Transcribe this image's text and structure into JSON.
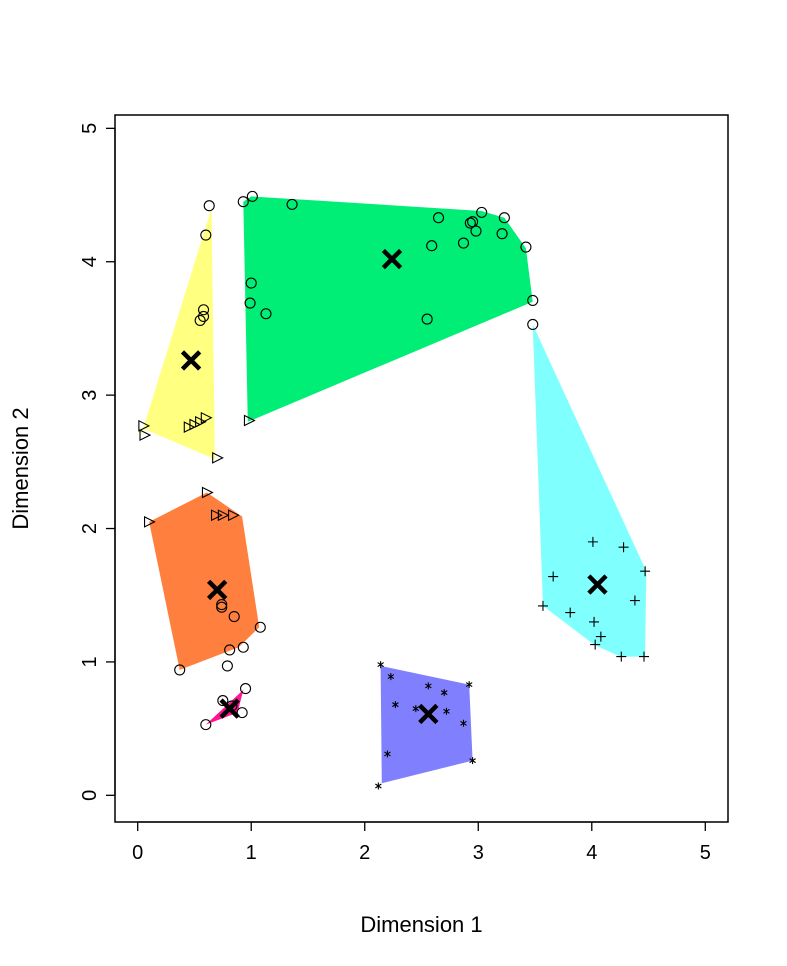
{
  "chart_data": {
    "type": "scatter",
    "xlabel": "Dimension 1",
    "ylabel": "Dimension 2",
    "xlim": [
      -0.2,
      5.2
    ],
    "ylim": [
      -0.2,
      5.1
    ],
    "x_ticks": [
      "0",
      "1",
      "2",
      "3",
      "4",
      "5"
    ],
    "y_ticks": [
      "0",
      "1",
      "2",
      "3",
      "4",
      "5"
    ],
    "grid": false,
    "legend": "none",
    "clusters": [
      {
        "color": "#ffff80",
        "hull": [
          [
            0.65,
            4.4
          ],
          [
            0.68,
            2.52
          ],
          [
            0.02,
            2.76
          ],
          [
            0.03,
            2.7
          ]
        ],
        "centroid": [
          0.47,
          3.26
        ],
        "points": [
          {
            "marker": "circle",
            "x": 0.63,
            "y": 4.42
          },
          {
            "marker": "circle",
            "x": 0.6,
            "y": 4.2
          },
          {
            "marker": "circle",
            "x": 0.58,
            "y": 3.64
          },
          {
            "marker": "circle",
            "x": 0.55,
            "y": 3.56
          },
          {
            "marker": "circle",
            "x": 0.58,
            "y": 3.59
          },
          {
            "marker": "triangle",
            "x": 0.05,
            "y": 2.77
          },
          {
            "marker": "triangle",
            "x": 0.06,
            "y": 2.7
          },
          {
            "marker": "triangle",
            "x": 0.45,
            "y": 2.76
          },
          {
            "marker": "triangle",
            "x": 0.5,
            "y": 2.78
          },
          {
            "marker": "triangle",
            "x": 0.55,
            "y": 2.8
          },
          {
            "marker": "triangle",
            "x": 0.6,
            "y": 2.83
          },
          {
            "marker": "triangle",
            "x": 0.7,
            "y": 2.53
          }
        ]
      },
      {
        "color": "#00ee76",
        "hull": [
          [
            0.93,
            4.45
          ],
          [
            1.0,
            4.49
          ],
          [
            3.03,
            4.38
          ],
          [
            3.23,
            4.33
          ],
          [
            3.42,
            4.1
          ],
          [
            3.48,
            3.7
          ],
          [
            0.97,
            2.8
          ]
        ],
        "centroid": [
          2.24,
          4.02
        ],
        "points": [
          {
            "marker": "circle",
            "x": 0.93,
            "y": 4.45
          },
          {
            "marker": "circle",
            "x": 1.01,
            "y": 4.49
          },
          {
            "marker": "circle",
            "x": 1.36,
            "y": 4.43
          },
          {
            "marker": "circle",
            "x": 2.65,
            "y": 4.33
          },
          {
            "marker": "circle",
            "x": 2.93,
            "y": 4.29
          },
          {
            "marker": "circle",
            "x": 2.95,
            "y": 4.3
          },
          {
            "marker": "circle",
            "x": 3.03,
            "y": 4.37
          },
          {
            "marker": "circle",
            "x": 3.23,
            "y": 4.33
          },
          {
            "marker": "circle",
            "x": 2.98,
            "y": 4.23
          },
          {
            "marker": "circle",
            "x": 3.21,
            "y": 4.21
          },
          {
            "marker": "circle",
            "x": 2.87,
            "y": 4.14
          },
          {
            "marker": "circle",
            "x": 2.59,
            "y": 4.12
          },
          {
            "marker": "circle",
            "x": 3.42,
            "y": 4.11
          },
          {
            "marker": "circle",
            "x": 1.0,
            "y": 3.84
          },
          {
            "marker": "circle",
            "x": 0.99,
            "y": 3.69
          },
          {
            "marker": "circle",
            "x": 1.13,
            "y": 3.61
          },
          {
            "marker": "circle",
            "x": 3.48,
            "y": 3.71
          },
          {
            "marker": "circle",
            "x": 2.55,
            "y": 3.57
          },
          {
            "marker": "triangle",
            "x": 0.98,
            "y": 2.81
          }
        ]
      },
      {
        "color": "#80ffff",
        "hull": [
          [
            3.48,
            3.53
          ],
          [
            4.48,
            1.68
          ],
          [
            4.47,
            1.04
          ],
          [
            4.25,
            1.04
          ],
          [
            4.02,
            1.13
          ],
          [
            3.57,
            1.42
          ]
        ],
        "centroid": [
          4.05,
          1.58
        ],
        "points": [
          {
            "marker": "circle",
            "x": 3.48,
            "y": 3.53
          },
          {
            "marker": "plus",
            "x": 4.01,
            "y": 1.9
          },
          {
            "marker": "plus",
            "x": 4.28,
            "y": 1.86
          },
          {
            "marker": "plus",
            "x": 3.66,
            "y": 1.64
          },
          {
            "marker": "plus",
            "x": 4.47,
            "y": 1.68
          },
          {
            "marker": "plus",
            "x": 4.38,
            "y": 1.46
          },
          {
            "marker": "plus",
            "x": 3.57,
            "y": 1.42
          },
          {
            "marker": "plus",
            "x": 3.81,
            "y": 1.37
          },
          {
            "marker": "plus",
            "x": 4.02,
            "y": 1.3
          },
          {
            "marker": "plus",
            "x": 4.08,
            "y": 1.19
          },
          {
            "marker": "plus",
            "x": 4.03,
            "y": 1.13
          },
          {
            "marker": "plus",
            "x": 4.26,
            "y": 1.04
          },
          {
            "marker": "plus",
            "x": 4.46,
            "y": 1.04
          }
        ]
      },
      {
        "color": "#ff7f3f",
        "hull": [
          [
            0.61,
            2.27
          ],
          [
            0.92,
            2.09
          ],
          [
            1.07,
            1.26
          ],
          [
            0.89,
            1.11
          ],
          [
            0.37,
            0.94
          ],
          [
            0.1,
            2.05
          ]
        ],
        "centroid": [
          0.7,
          1.54
        ],
        "points": [
          {
            "marker": "triangle",
            "x": 0.61,
            "y": 2.27
          },
          {
            "marker": "triangle",
            "x": 0.1,
            "y": 2.05
          },
          {
            "marker": "triangle",
            "x": 0.69,
            "y": 2.1
          },
          {
            "marker": "triangle",
            "x": 0.75,
            "y": 2.1
          },
          {
            "marker": "triangle",
            "x": 0.84,
            "y": 2.1
          },
          {
            "marker": "circle",
            "x": 0.74,
            "y": 1.43
          },
          {
            "marker": "circle",
            "x": 0.74,
            "y": 1.41
          },
          {
            "marker": "circle",
            "x": 0.85,
            "y": 1.34
          },
          {
            "marker": "circle",
            "x": 1.08,
            "y": 1.26
          },
          {
            "marker": "circle",
            "x": 0.93,
            "y": 1.11
          },
          {
            "marker": "circle",
            "x": 0.81,
            "y": 1.09
          },
          {
            "marker": "circle",
            "x": 0.79,
            "y": 0.97
          },
          {
            "marker": "circle",
            "x": 0.37,
            "y": 0.94
          }
        ]
      },
      {
        "color": "#ff1493",
        "hull": [
          [
            0.6,
            0.53
          ],
          [
            0.93,
            0.79
          ],
          [
            0.88,
            0.62
          ]
        ],
        "centroid": [
          0.81,
          0.65
        ],
        "points": [
          {
            "marker": "circle",
            "x": 0.95,
            "y": 0.8
          },
          {
            "marker": "circle",
            "x": 0.75,
            "y": 0.71
          },
          {
            "marker": "circle",
            "x": 0.83,
            "y": 0.67
          },
          {
            "marker": "circle",
            "x": 0.92,
            "y": 0.62
          },
          {
            "marker": "circle",
            "x": 0.6,
            "y": 0.53
          }
        ]
      },
      {
        "color": "#8080ff",
        "hull": [
          [
            2.14,
            0.97
          ],
          [
            2.92,
            0.83
          ],
          [
            2.95,
            0.26
          ],
          [
            2.15,
            0.09
          ]
        ],
        "centroid": [
          2.56,
          0.61
        ],
        "points": [
          {
            "marker": "star",
            "x": 2.14,
            "y": 0.98
          },
          {
            "marker": "star",
            "x": 2.23,
            "y": 0.89
          },
          {
            "marker": "star",
            "x": 2.92,
            "y": 0.83
          },
          {
            "marker": "star",
            "x": 2.56,
            "y": 0.82
          },
          {
            "marker": "star",
            "x": 2.7,
            "y": 0.77
          },
          {
            "marker": "star",
            "x": 2.27,
            "y": 0.68
          },
          {
            "marker": "star",
            "x": 2.45,
            "y": 0.65
          },
          {
            "marker": "star",
            "x": 2.72,
            "y": 0.63
          },
          {
            "marker": "star",
            "x": 2.87,
            "y": 0.54
          },
          {
            "marker": "star",
            "x": 2.2,
            "y": 0.31
          },
          {
            "marker": "star",
            "x": 2.95,
            "y": 0.26
          },
          {
            "marker": "star",
            "x": 2.12,
            "y": 0.07
          }
        ]
      }
    ]
  }
}
